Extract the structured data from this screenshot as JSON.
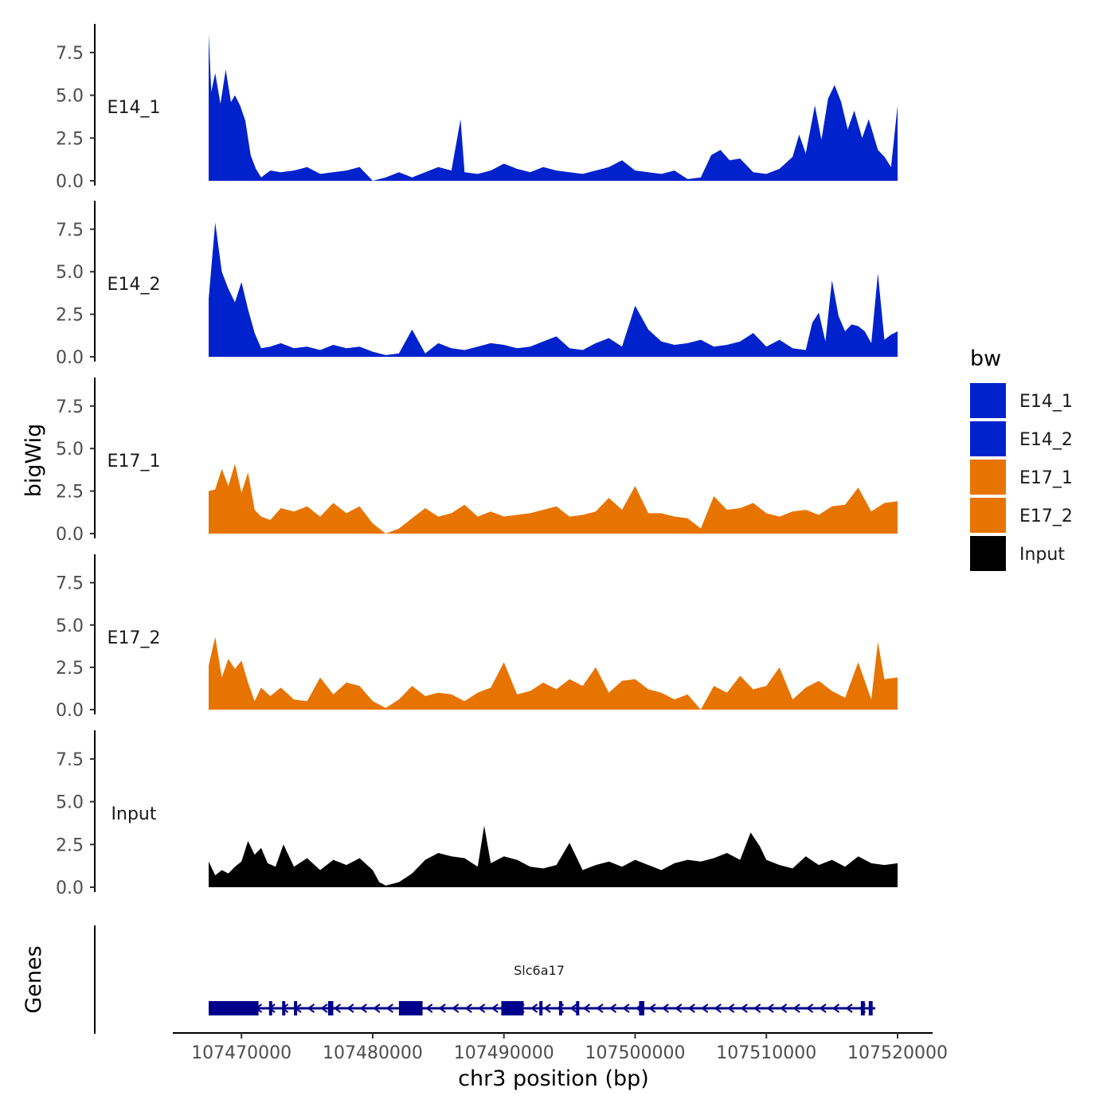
{
  "chart_data": {
    "type": "area",
    "ylabel": "bigWig",
    "xlabel": "chr3 position (bp)",
    "genes_label": "Genes",
    "ylim": [
      0,
      8.8
    ],
    "y_ticks": [
      "0.0",
      "2.5",
      "5.0",
      "7.5"
    ],
    "xlim": [
      107467500,
      107520000
    ],
    "x_ticks": [
      "107470000",
      "107480000",
      "107490000",
      "107500000",
      "107510000",
      "107520000"
    ],
    "legend": {
      "title": "bw",
      "entries": [
        {
          "label": "E14_1",
          "color": "#0022cc"
        },
        {
          "label": "E14_2",
          "color": "#0022cc"
        },
        {
          "label": "E17_1",
          "color": "#e87400"
        },
        {
          "label": "E17_2",
          "color": "#e87400"
        },
        {
          "label": "Input",
          "color": "#000000"
        }
      ]
    },
    "series": [
      {
        "name": "E14_1",
        "color": "#0022cc",
        "x": [
          107467500,
          107467700,
          107468000,
          107468400,
          107468800,
          107469200,
          107469500,
          107469900,
          107470300,
          107470700,
          107471100,
          107471500,
          107472200,
          107473000,
          107474000,
          107475000,
          107476000,
          107477000,
          107478000,
          107479000,
          107480000,
          107481000,
          107482000,
          107483000,
          107484000,
          107485000,
          107486000,
          107486700,
          107487000,
          107488000,
          107489000,
          107490000,
          107491000,
          107492000,
          107493000,
          107494000,
          107495000,
          107496000,
          107497000,
          107498000,
          107499000,
          107500000,
          107501000,
          107502000,
          107503000,
          107504000,
          107505000,
          107505800,
          107506500,
          107507200,
          107508000,
          107509000,
          107510000,
          107511000,
          107512000,
          107512500,
          107513000,
          107513700,
          107514200,
          107514700,
          107515200,
          107515700,
          107516200,
          107516700,
          107517300,
          107517800,
          107518500,
          107519000,
          107519500,
          107520000
        ],
        "values": [
          8.6,
          5.2,
          6.3,
          4.5,
          6.5,
          4.6,
          5.0,
          4.4,
          3.5,
          1.5,
          0.7,
          0.2,
          0.6,
          0.5,
          0.6,
          0.8,
          0.4,
          0.5,
          0.6,
          0.8,
          0.0,
          0.2,
          0.5,
          0.2,
          0.5,
          0.8,
          0.6,
          3.6,
          0.5,
          0.4,
          0.6,
          1.0,
          0.7,
          0.5,
          0.8,
          0.6,
          0.5,
          0.4,
          0.6,
          0.8,
          1.2,
          0.6,
          0.5,
          0.4,
          0.6,
          0.1,
          0.2,
          1.5,
          1.8,
          1.2,
          1.3,
          0.5,
          0.4,
          0.7,
          1.4,
          2.7,
          1.6,
          4.4,
          2.4,
          4.8,
          5.6,
          4.6,
          3.0,
          4.1,
          2.5,
          3.6,
          1.8,
          1.4,
          0.8,
          4.4
        ]
      },
      {
        "name": "E14_2",
        "color": "#0022cc",
        "x": [
          107467500,
          107468000,
          107468500,
          107469000,
          107469500,
          107470000,
          107470500,
          107471000,
          107471500,
          107472200,
          107473000,
          107474000,
          107475000,
          107476000,
          107477000,
          107478000,
          107479000,
          107480000,
          107481000,
          107482000,
          107483000,
          107484000,
          107485000,
          107486000,
          107487000,
          107488000,
          107489000,
          107490000,
          107491000,
          107492000,
          107493000,
          107494000,
          107495000,
          107496000,
          107497000,
          107498000,
          107499000,
          107500000,
          107501000,
          107502000,
          107503000,
          107504000,
          107505000,
          107506000,
          107507000,
          107508000,
          107509000,
          107510000,
          107511000,
          107512000,
          107513000,
          107513500,
          107514000,
          107514500,
          107515000,
          107515500,
          107516000,
          107516500,
          107517000,
          107517500,
          107518000,
          107518500,
          107519000,
          107519500,
          107520000
        ],
        "values": [
          3.4,
          7.9,
          5.0,
          4.0,
          3.2,
          4.4,
          2.8,
          1.4,
          0.5,
          0.6,
          0.8,
          0.5,
          0.6,
          0.4,
          0.7,
          0.5,
          0.6,
          0.3,
          0.1,
          0.2,
          1.6,
          0.2,
          0.8,
          0.5,
          0.4,
          0.6,
          0.8,
          0.7,
          0.5,
          0.6,
          0.9,
          1.2,
          0.5,
          0.4,
          0.8,
          1.1,
          0.6,
          3.0,
          1.6,
          0.9,
          0.7,
          0.8,
          1.0,
          0.6,
          0.7,
          0.9,
          1.4,
          0.6,
          1.0,
          0.5,
          0.4,
          2.0,
          2.6,
          0.9,
          4.5,
          2.4,
          1.5,
          1.9,
          1.8,
          1.5,
          0.8,
          4.9,
          1.0,
          1.3,
          1.5
        ]
      },
      {
        "name": "E17_1",
        "color": "#e87400",
        "x": [
          107467500,
          107468000,
          107468500,
          107469000,
          107469500,
          107470000,
          107470500,
          107471000,
          107471500,
          107472200,
          107473000,
          107474000,
          107475000,
          107476000,
          107477000,
          107478000,
          107479000,
          107480000,
          107481000,
          107482000,
          107483000,
          107484000,
          107485000,
          107486000,
          107487000,
          107488000,
          107489000,
          107490000,
          107491000,
          107492000,
          107493000,
          107494000,
          107495000,
          107496000,
          107497000,
          107498000,
          107499000,
          107500000,
          107501000,
          107502000,
          107503000,
          107504000,
          107505000,
          107506000,
          107507000,
          107508000,
          107509000,
          107510000,
          107511000,
          107512000,
          107513000,
          107514000,
          107515000,
          107516000,
          107517000,
          107518000,
          107519000,
          107520000
        ],
        "values": [
          2.5,
          2.6,
          3.8,
          2.8,
          4.1,
          2.4,
          3.6,
          1.4,
          1.0,
          0.8,
          1.5,
          1.3,
          1.6,
          1.0,
          1.8,
          1.2,
          1.6,
          0.6,
          0.0,
          0.3,
          0.9,
          1.5,
          1.0,
          1.2,
          1.7,
          1.0,
          1.3,
          1.0,
          1.1,
          1.2,
          1.4,
          1.6,
          1.0,
          1.1,
          1.3,
          2.1,
          1.4,
          2.8,
          1.2,
          1.2,
          1.0,
          0.9,
          0.3,
          2.2,
          1.4,
          1.5,
          1.8,
          1.2,
          1.0,
          1.3,
          1.4,
          1.1,
          1.6,
          1.7,
          2.7,
          1.3,
          1.8,
          1.9
        ]
      },
      {
        "name": "E17_2",
        "color": "#e87400",
        "x": [
          107467500,
          107468000,
          107468500,
          107469000,
          107469500,
          107470000,
          107470500,
          107471000,
          107471500,
          107472200,
          107473000,
          107474000,
          107475000,
          107476000,
          107477000,
          107478000,
          107479000,
          107480000,
          107481000,
          107482000,
          107483000,
          107484000,
          107485000,
          107486000,
          107487000,
          107488000,
          107489000,
          107490000,
          107491000,
          107492000,
          107493000,
          107494000,
          107495000,
          107496000,
          107497000,
          107498000,
          107499000,
          107500000,
          107501000,
          107502000,
          107503000,
          107504000,
          107505000,
          107506000,
          107507000,
          107508000,
          107509000,
          107510000,
          107511000,
          107512000,
          107513000,
          107514000,
          107515000,
          107516000,
          107517000,
          107518000,
          107518500,
          107519000,
          107520000
        ],
        "values": [
          2.6,
          4.3,
          1.9,
          3.0,
          2.4,
          2.9,
          1.6,
          0.5,
          1.3,
          0.8,
          1.3,
          0.6,
          0.5,
          1.9,
          0.9,
          1.6,
          1.4,
          0.5,
          0.1,
          0.6,
          1.4,
          0.8,
          1.0,
          0.9,
          0.5,
          1.0,
          1.3,
          2.8,
          0.9,
          1.1,
          1.6,
          1.2,
          1.8,
          1.4,
          2.5,
          1.0,
          1.7,
          1.8,
          1.2,
          1.0,
          0.6,
          0.9,
          0.0,
          1.4,
          1.0,
          2.0,
          1.2,
          1.4,
          2.5,
          0.6,
          1.3,
          1.7,
          1.1,
          0.7,
          2.8,
          0.6,
          4.0,
          1.8,
          1.9
        ]
      },
      {
        "name": "Input",
        "color": "#000000",
        "x": [
          107467500,
          107468000,
          107468500,
          107469000,
          107469500,
          107470000,
          107470500,
          107471000,
          107471500,
          107472000,
          107472600,
          107473200,
          107474000,
          107475000,
          107476000,
          107477000,
          107478000,
          107479000,
          107480000,
          107480500,
          107481000,
          107482000,
          107483000,
          107484000,
          107485000,
          107486000,
          107487000,
          107488000,
          107488500,
          107489000,
          107490000,
          107491000,
          107492000,
          107493000,
          107494000,
          107495000,
          107496000,
          107497000,
          107498000,
          107499000,
          107500000,
          107501000,
          107502000,
          107503000,
          107504000,
          107505000,
          107506000,
          107507000,
          107508000,
          107508800,
          107509500,
          107510000,
          107511000,
          107512000,
          107513000,
          107514000,
          107515000,
          107516000,
          107517000,
          107518000,
          107519000,
          107520000
        ],
        "values": [
          1.5,
          0.7,
          1.0,
          0.8,
          1.2,
          1.5,
          2.7,
          1.9,
          2.3,
          1.4,
          1.2,
          2.5,
          1.2,
          1.7,
          1.0,
          1.6,
          1.3,
          1.7,
          1.0,
          0.3,
          0.1,
          0.3,
          0.8,
          1.6,
          2.0,
          1.8,
          1.7,
          1.2,
          3.6,
          1.4,
          1.8,
          1.6,
          1.2,
          1.1,
          1.3,
          2.6,
          1.0,
          1.3,
          1.5,
          1.2,
          1.6,
          1.3,
          1.0,
          1.4,
          1.6,
          1.5,
          1.7,
          2.0,
          1.6,
          3.2,
          2.4,
          1.6,
          1.3,
          1.1,
          1.8,
          1.3,
          1.6,
          1.2,
          1.8,
          1.4,
          1.3,
          1.4
        ]
      }
    ],
    "gene_track": {
      "gene_name": "Slc6a17",
      "strand": "-",
      "color": "#00008b",
      "start": 107467500,
      "end": 107518300,
      "exons": [
        {
          "start": 107467500,
          "end": 107471300
        },
        {
          "start": 107472100,
          "end": 107472300
        },
        {
          "start": 107473100,
          "end": 107473300
        },
        {
          "start": 107474000,
          "end": 107474200
        },
        {
          "start": 107476600,
          "end": 107477000
        },
        {
          "start": 107482000,
          "end": 107483800
        },
        {
          "start": 107489800,
          "end": 107491500
        },
        {
          "start": 107492700,
          "end": 107492900
        },
        {
          "start": 107494200,
          "end": 107494400
        },
        {
          "start": 107495500,
          "end": 107495700
        },
        {
          "start": 107500300,
          "end": 107500700
        },
        {
          "start": 107517200,
          "end": 107517500
        },
        {
          "start": 107517800,
          "end": 107518100
        }
      ]
    }
  }
}
